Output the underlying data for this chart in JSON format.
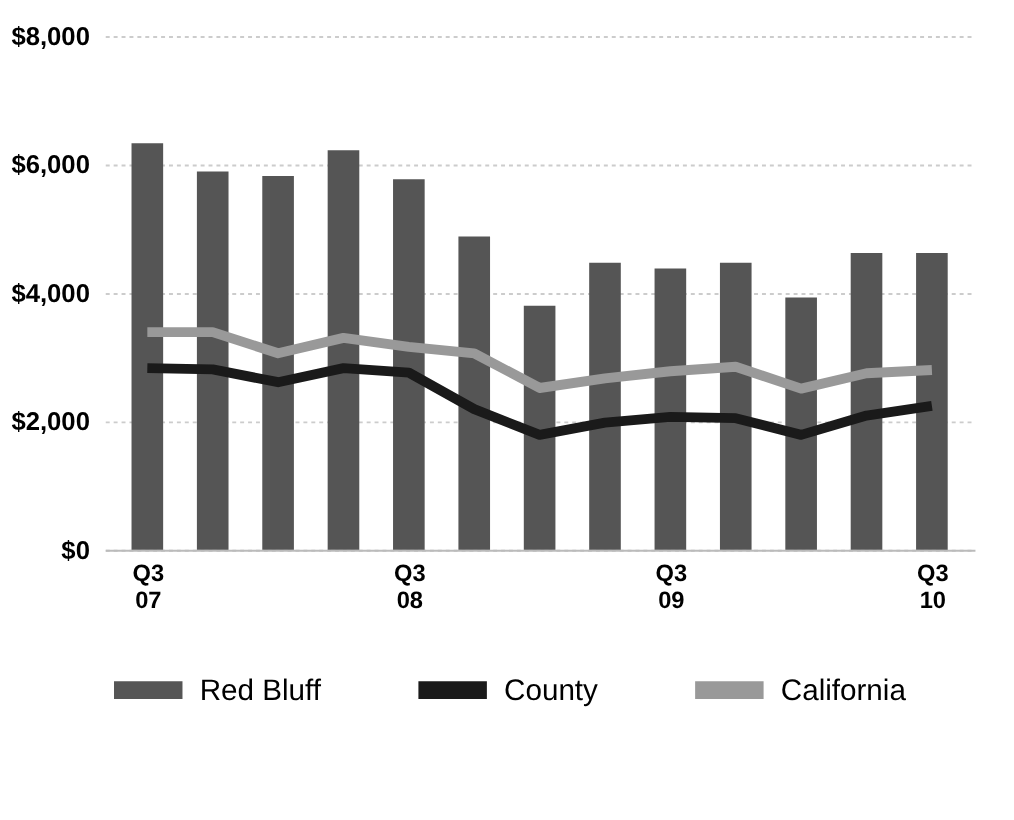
{
  "chart_data": {
    "type": "bar",
    "categories": [
      "Q3 07",
      null,
      null,
      null,
      "Q3 08",
      null,
      null,
      null,
      "Q3 09",
      null,
      null,
      null,
      "Q3 10"
    ],
    "series": [
      {
        "name": "Red Bluff",
        "color": "#555555",
        "values": [
          6330,
          5890,
          5820,
          6220,
          5770,
          4880,
          3800,
          4470,
          4380,
          4470,
          3930,
          4620,
          4620
        ]
      },
      {
        "name": "County",
        "type": "line",
        "color": "#1a1a1a",
        "values": [
          2830,
          2810,
          2610,
          2830,
          2760,
          2190,
          1790,
          1980,
          2070,
          2050,
          1790,
          2090,
          2240
        ]
      },
      {
        "name": "California",
        "type": "line",
        "color": "#999999",
        "values": [
          3390,
          3390,
          3060,
          3300,
          3160,
          3060,
          2520,
          2670,
          2780,
          2850,
          2510,
          2750,
          2800
        ]
      }
    ],
    "ylim": [
      0,
      8000
    ],
    "yticks": [
      {
        "value": 0,
        "label": "$0"
      },
      {
        "value": 2000,
        "label": "$2,000"
      },
      {
        "value": 4000,
        "label": "$4,000"
      },
      {
        "value": 6000,
        "label": "$6,000"
      },
      {
        "value": 8000,
        "label": "$8,000"
      }
    ],
    "grid": "y",
    "legend": "bottom",
    "marker": "none",
    "line_style": "solid"
  }
}
